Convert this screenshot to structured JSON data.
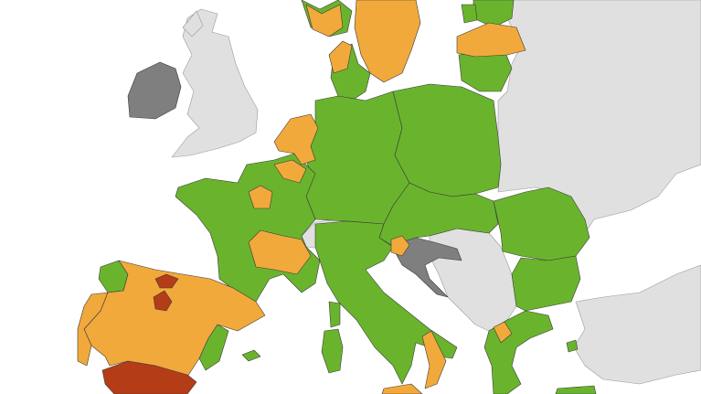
{
  "map": {
    "colors": {
      "background": "#ffffff",
      "green": "#6ab42d",
      "orange": "#f2a93b",
      "red": "#b43c17",
      "grey": "#7f7f7f",
      "no_data": "#e0e0e0"
    }
  }
}
